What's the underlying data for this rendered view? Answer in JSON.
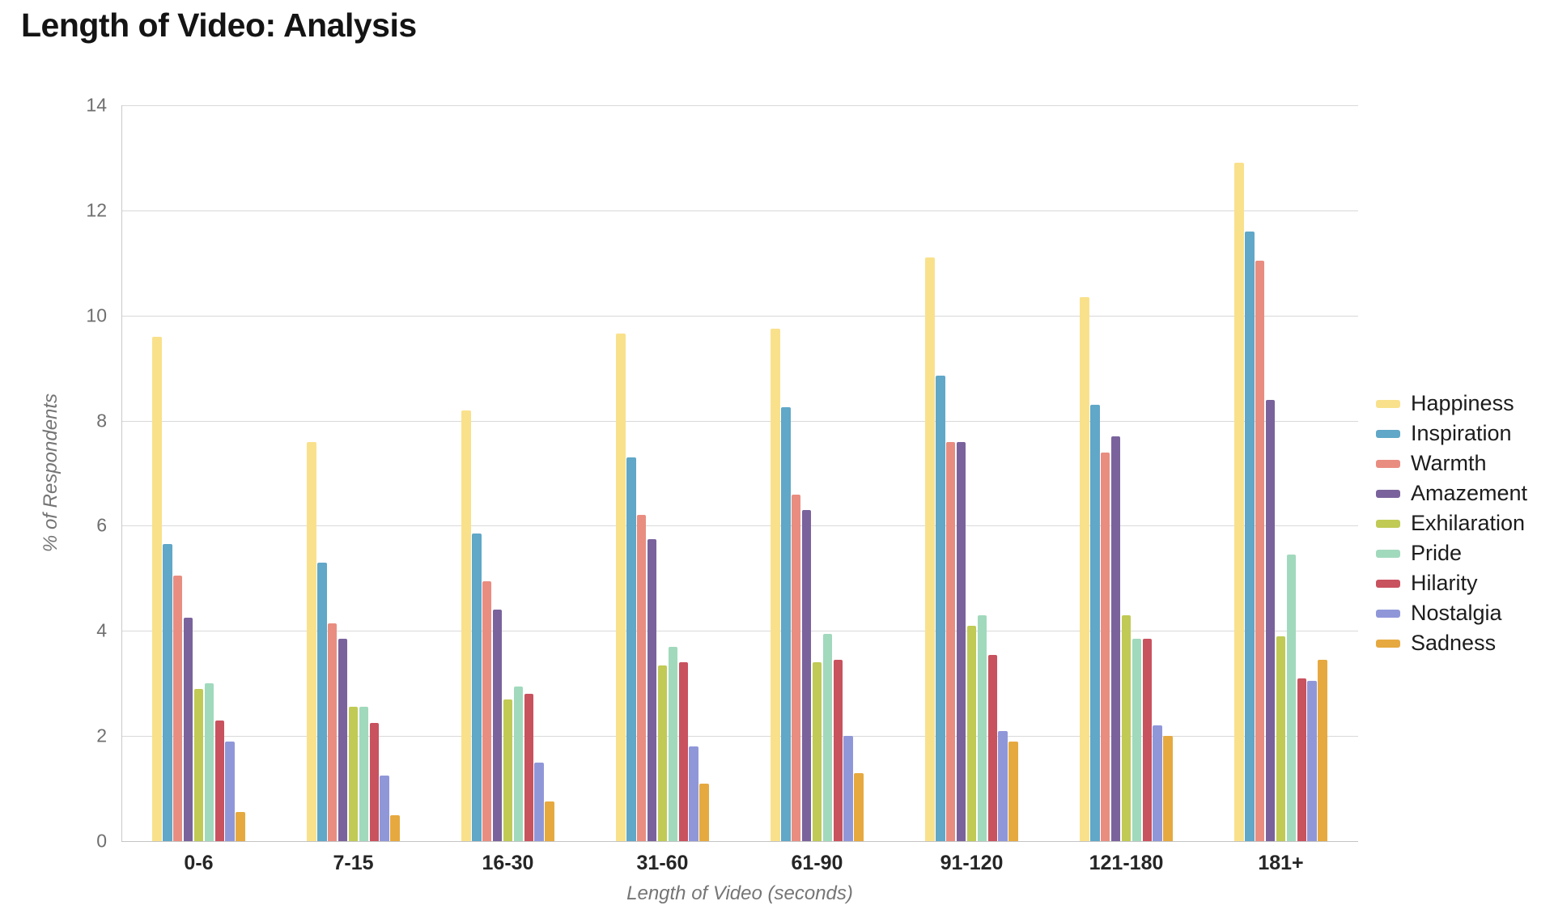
{
  "title": "Length of Video: Analysis",
  "chart_data": {
    "type": "bar",
    "title": "Length of Video: Analysis",
    "xlabel": "Length of Video (seconds)",
    "ylabel": "% of Respondents",
    "categories": [
      "0-6",
      "7-15",
      "16-30",
      "31-60",
      "61-90",
      "91-120",
      "121-180",
      "181+"
    ],
    "series": [
      {
        "name": "Happiness",
        "color": "#f9e18c",
        "values": [
          9.6,
          7.6,
          8.2,
          9.65,
          9.75,
          11.1,
          10.35,
          12.9
        ]
      },
      {
        "name": "Inspiration",
        "color": "#60a7c8",
        "values": [
          5.65,
          5.3,
          5.85,
          7.3,
          8.25,
          8.85,
          8.3,
          11.6
        ]
      },
      {
        "name": "Warmth",
        "color": "#e98d80",
        "values": [
          5.05,
          4.15,
          4.95,
          6.2,
          6.6,
          7.6,
          7.4,
          11.05
        ]
      },
      {
        "name": "Amazement",
        "color": "#7a639c",
        "values": [
          4.25,
          3.85,
          4.4,
          5.75,
          6.3,
          7.6,
          7.7,
          8.4
        ]
      },
      {
        "name": "Exhilaration",
        "color": "#c0ca55",
        "values": [
          2.9,
          2.55,
          2.7,
          3.35,
          3.4,
          4.1,
          4.3,
          3.9
        ]
      },
      {
        "name": "Pride",
        "color": "#a1d9bd",
        "values": [
          3.0,
          2.55,
          2.95,
          3.7,
          3.95,
          4.3,
          3.85,
          5.45
        ]
      },
      {
        "name": "Hilarity",
        "color": "#c9525f",
        "values": [
          2.3,
          2.25,
          2.8,
          3.4,
          3.45,
          3.55,
          3.85,
          3.1
        ]
      },
      {
        "name": "Nostalgia",
        "color": "#9097d9",
        "values": [
          1.9,
          1.25,
          1.5,
          1.8,
          2.0,
          2.1,
          2.2,
          3.05
        ]
      },
      {
        "name": "Sadness",
        "color": "#e6a93f",
        "values": [
          0.55,
          0.5,
          0.75,
          1.1,
          1.3,
          1.9,
          2.0,
          3.45
        ]
      }
    ],
    "ylim": [
      0,
      14
    ],
    "ytick_step": 2,
    "grid": true,
    "legend_position": "right"
  }
}
